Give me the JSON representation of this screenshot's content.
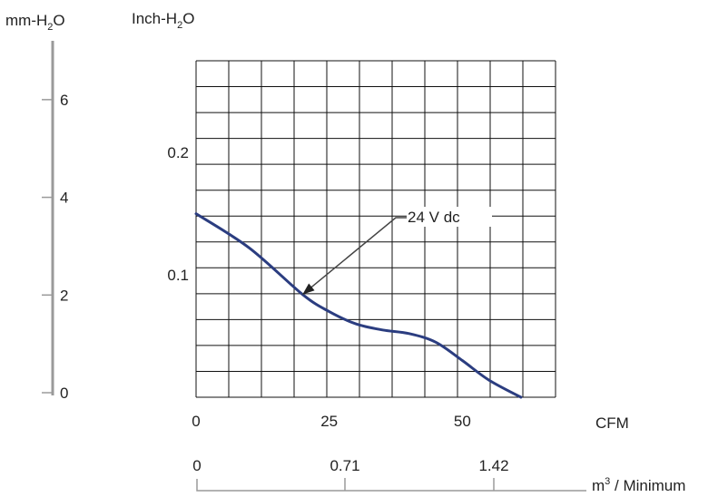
{
  "chart_data": {
    "type": "line",
    "left_axis": {
      "title": "mm-H₂O",
      "ticks": [
        {
          "value": 0,
          "label": "0"
        },
        {
          "value": 2,
          "label": "2"
        },
        {
          "value": 4,
          "label": "4"
        },
        {
          "value": 6,
          "label": "6"
        }
      ],
      "range": [
        0,
        7
      ]
    },
    "y_axis": {
      "title": "Inch-H₂O",
      "range": [
        0,
        0.275
      ],
      "ticks": [
        {
          "value": 0.1,
          "label": "0.1"
        },
        {
          "value": 0.2,
          "label": "0.2"
        }
      ]
    },
    "x_axis": {
      "title": "CFM",
      "range": [
        0,
        67.5
      ],
      "ticks": [
        {
          "value": 0,
          "label": "0"
        },
        {
          "value": 25,
          "label": "25"
        },
        {
          "value": 50,
          "label": "50"
        }
      ]
    },
    "x2_axis": {
      "title": "m³ / Minimum",
      "ticks": [
        {
          "value": 0,
          "label": "0"
        },
        {
          "value": 0.71,
          "label": "0.71"
        },
        {
          "value": 1.42,
          "label": "1.42"
        }
      ]
    },
    "grid": true,
    "grid_cells": {
      "columns": 11,
      "rows": 13
    },
    "series": [
      {
        "name": "24 V dc",
        "color": "#2b3d80",
        "points": [
          {
            "x": 0,
            "y": 0.15
          },
          {
            "x": 10,
            "y": 0.122
          },
          {
            "x": 20,
            "y": 0.084
          },
          {
            "x": 25,
            "y": 0.07
          },
          {
            "x": 30,
            "y": 0.06
          },
          {
            "x": 35,
            "y": 0.055
          },
          {
            "x": 40,
            "y": 0.052
          },
          {
            "x": 45,
            "y": 0.045
          },
          {
            "x": 50,
            "y": 0.03
          },
          {
            "x": 55,
            "y": 0.014
          },
          {
            "x": 61,
            "y": 0
          }
        ]
      }
    ],
    "annotation": {
      "text": "24 V dc",
      "points_to": {
        "x": 20,
        "y": 0.084
      }
    }
  }
}
